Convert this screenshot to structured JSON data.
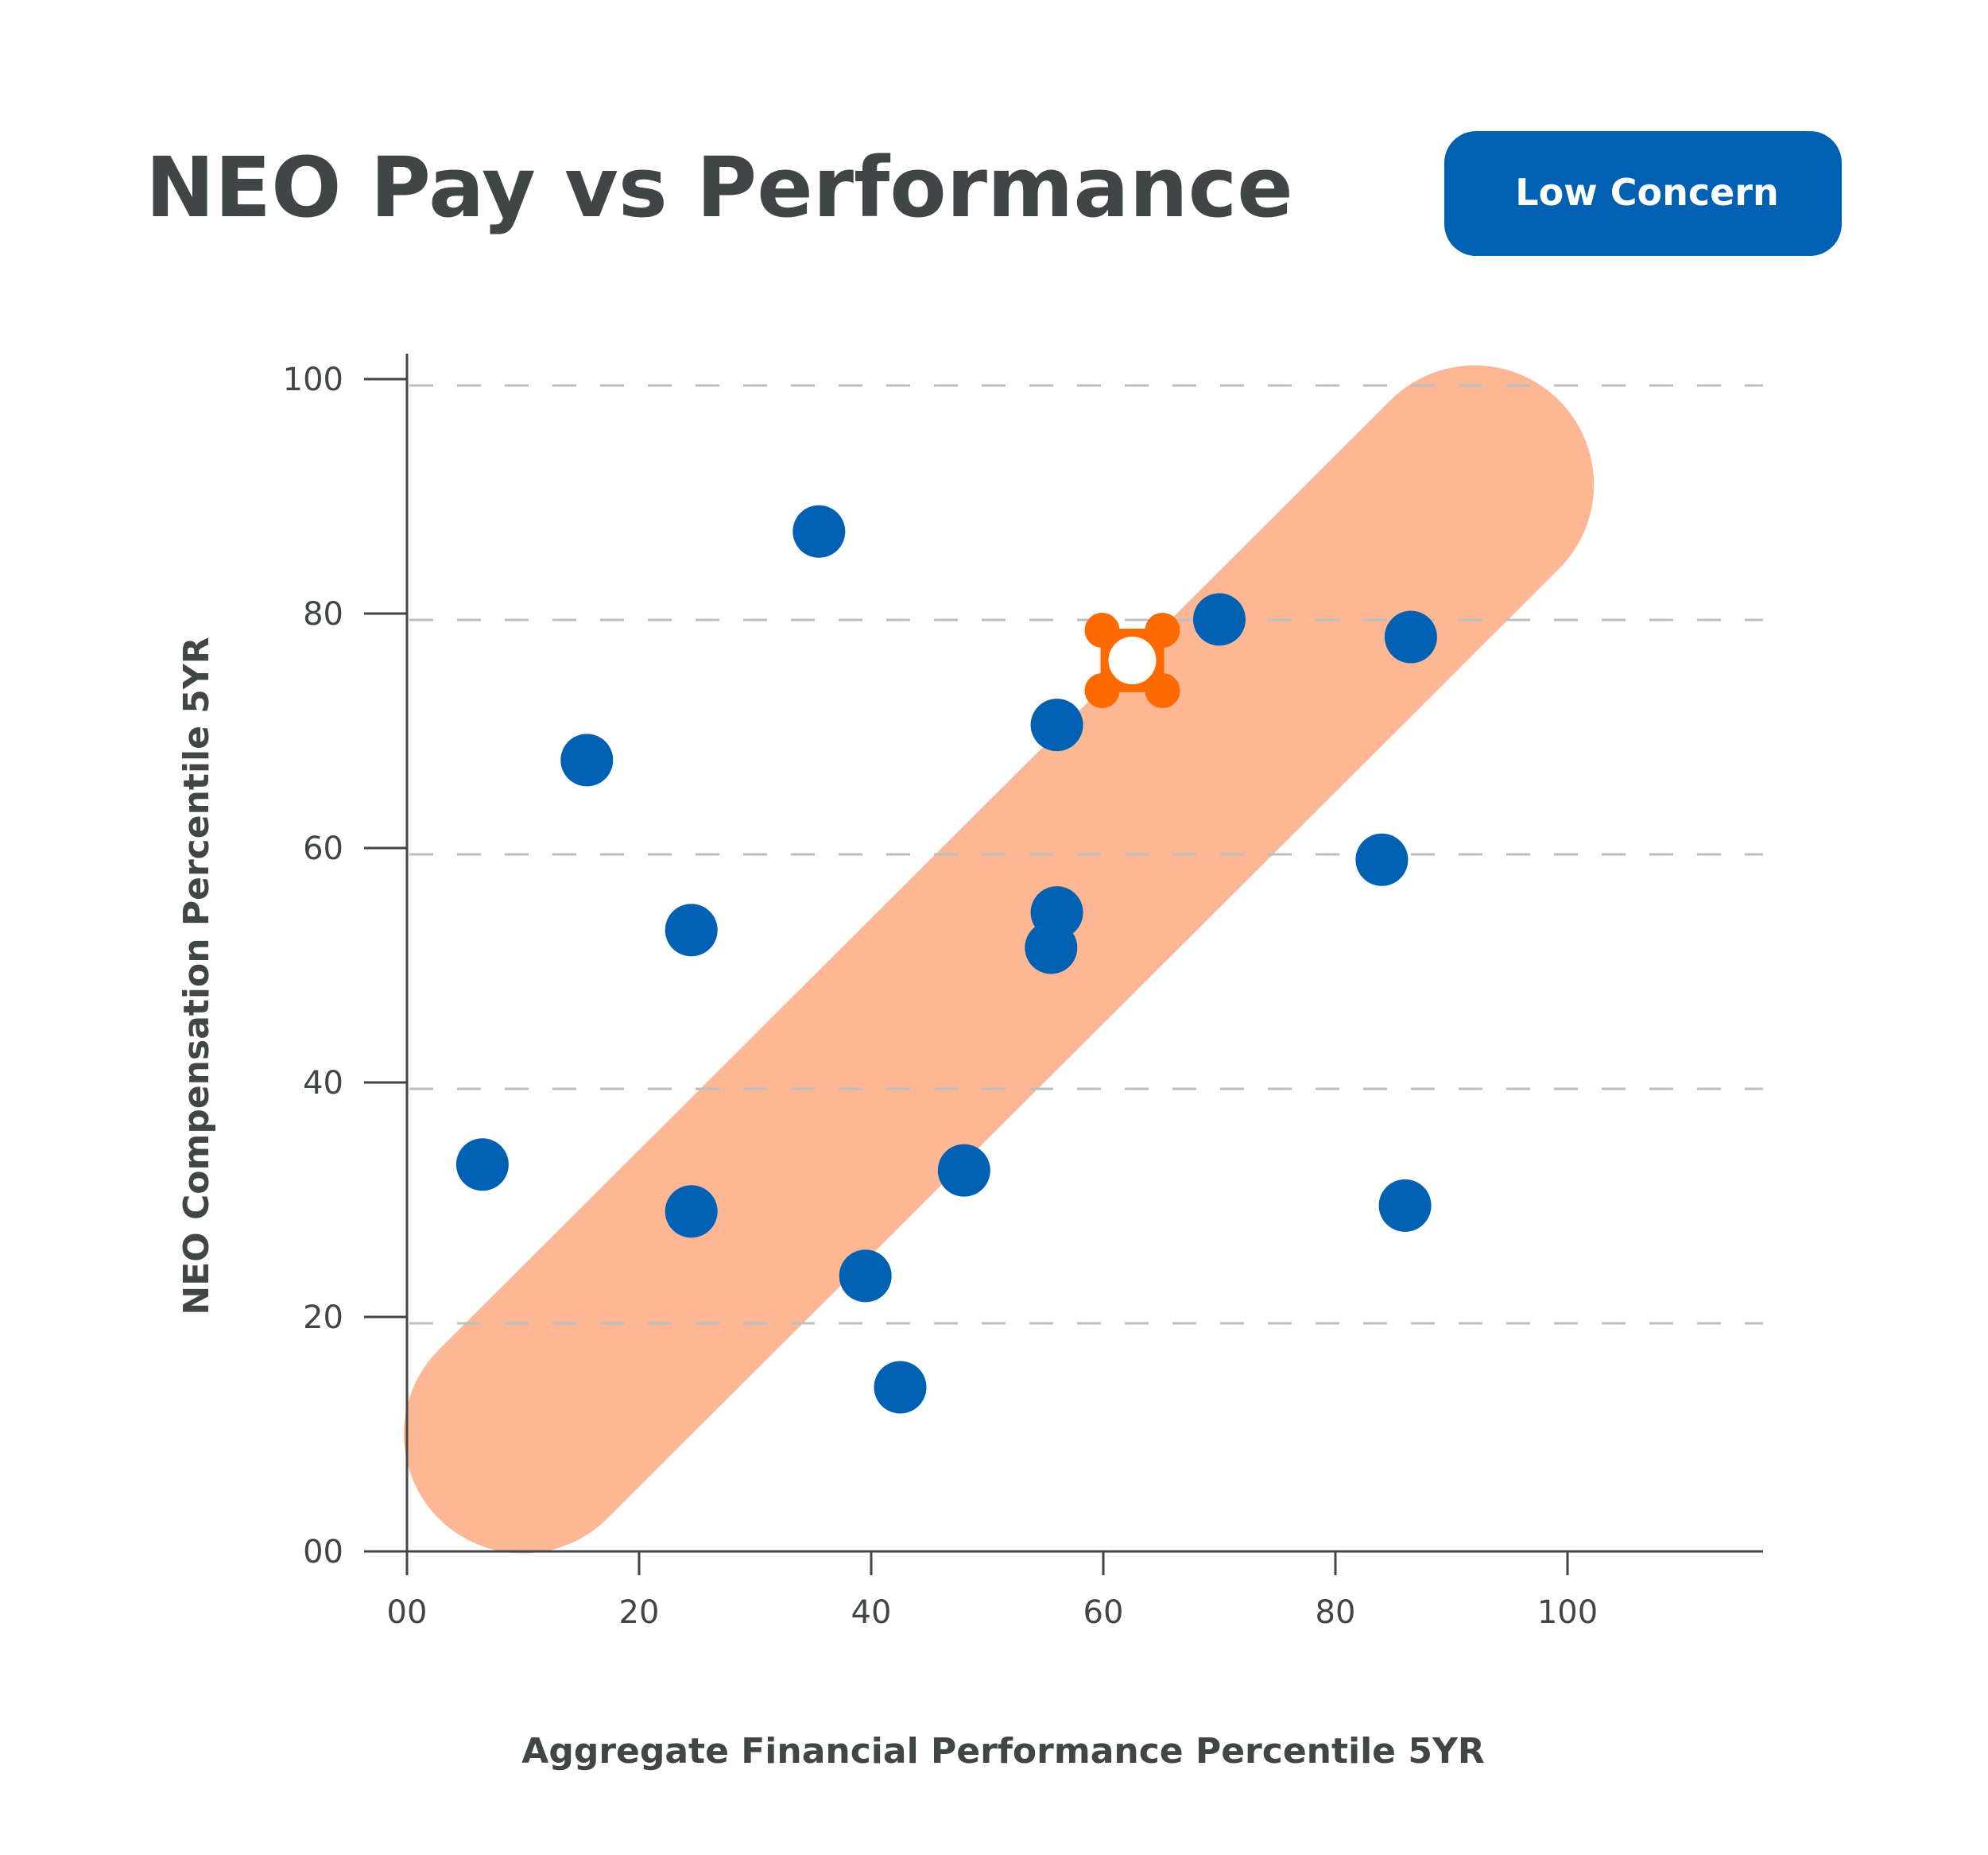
{
  "header": {
    "title": "NEO Pay vs Performance",
    "badge_label": "Low Concern"
  },
  "colors": {
    "text": "#404545",
    "point": "#0061b2",
    "band": "#fdb795",
    "highlight": "#ff6a00",
    "badge": "#0061b2",
    "grid": "#b9c0bf"
  },
  "chart_data": {
    "type": "scatter",
    "title": "NEO Pay vs Performance",
    "xlabel": "Aggregate Financial Performance Percentile 5YR",
    "ylabel": "NEO Compensation Percentile 5YR",
    "xlim": [
      0,
      115
    ],
    "ylim": [
      0,
      100
    ],
    "x_ticks": [
      "00",
      "20",
      "40",
      "60",
      "80",
      "100"
    ],
    "y_ticks": [
      "00",
      "20",
      "40",
      "60",
      "80",
      "100"
    ],
    "grid": "horizontal dashed",
    "points": [
      {
        "x": 6.5,
        "y": 33
      },
      {
        "x": 15.5,
        "y": 67.5
      },
      {
        "x": 24.5,
        "y": 53
      },
      {
        "x": 24.5,
        "y": 29
      },
      {
        "x": 35.5,
        "y": 87
      },
      {
        "x": 39.5,
        "y": 23.5
      },
      {
        "x": 42.5,
        "y": 14
      },
      {
        "x": 48,
        "y": 32.5
      },
      {
        "x": 56,
        "y": 70.5
      },
      {
        "x": 56,
        "y": 54.5
      },
      {
        "x": 55.5,
        "y": 51.5
      },
      {
        "x": 70,
        "y": 79.5
      },
      {
        "x": 86.5,
        "y": 78
      },
      {
        "x": 84,
        "y": 59
      },
      {
        "x": 86,
        "y": 29.5
      }
    ],
    "highlight_point": {
      "x": 62.5,
      "y": 76
    },
    "band": {
      "x_start": 10,
      "y_start": 10,
      "x_end": 92,
      "y_end": 91
    }
  }
}
